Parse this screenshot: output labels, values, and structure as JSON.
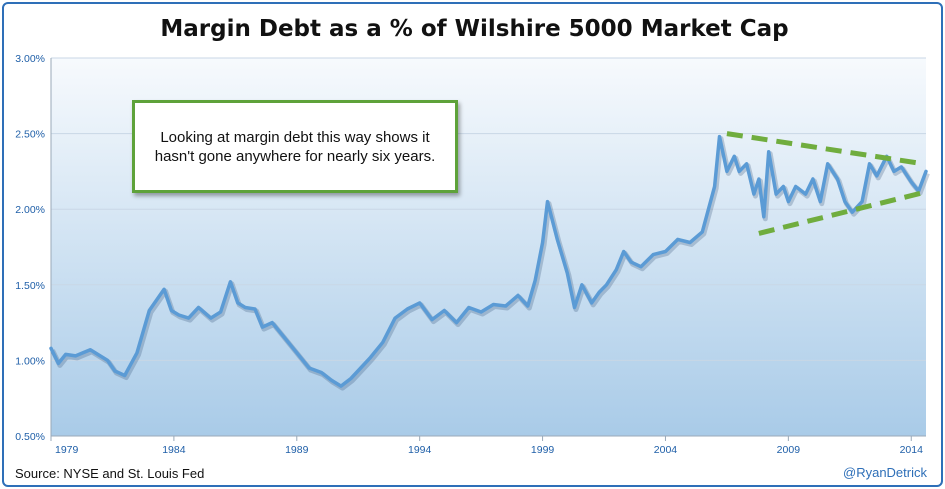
{
  "chart_data": {
    "type": "line",
    "title": "Margin Debt as a % of Wilshire 5000 Market Cap",
    "xlabel": "",
    "ylabel": "",
    "ylim": [
      0.5,
      3.0
    ],
    "xlim": [
      1979,
      2014.6
    ],
    "y_ticks": [
      "0.50%",
      "1.00%",
      "1.50%",
      "2.00%",
      "2.50%",
      "3.00%"
    ],
    "x_ticks": [
      "1979",
      "1984",
      "1989",
      "1994",
      "1999",
      "2004",
      "2009",
      "2014"
    ],
    "grid": true,
    "series": [
      {
        "name": "",
        "color": "#5b9bd5",
        "x": [
          1979.0,
          1979.3,
          1979.6,
          1980.0,
          1980.3,
          1980.6,
          1981.0,
          1981.3,
          1981.6,
          1982.0,
          1982.5,
          1983.0,
          1983.3,
          1983.6,
          1983.9,
          1984.2,
          1984.6,
          1985.0,
          1985.5,
          1985.9,
          1986.3,
          1986.6,
          1986.9,
          1987.3,
          1987.6,
          1988.0,
          1988.5,
          1989.0,
          1989.5,
          1990.0,
          1990.4,
          1990.8,
          1991.2,
          1991.6,
          1992.0,
          1992.5,
          1993.0,
          1993.5,
          1994.0,
          1994.5,
          1995.0,
          1995.5,
          1996.0,
          1996.5,
          1997.0,
          1997.5,
          1998.0,
          1998.4,
          1998.7,
          1999.0,
          1999.2,
          1999.6,
          2000.0,
          2000.3,
          2000.6,
          2001.0,
          2001.3,
          2001.6,
          2002.0,
          2002.3,
          2002.6,
          2003.0,
          2003.5,
          2004.0,
          2004.5,
          2005.0,
          2005.5,
          2006.0,
          2006.2,
          2006.5,
          2006.8,
          2007.0,
          2007.3,
          2007.6,
          2007.8,
          2008.0,
          2008.2,
          2008.5,
          2008.8,
          2009.0,
          2009.3,
          2009.7,
          2010.0,
          2010.3,
          2010.6,
          2011.0,
          2011.3,
          2011.6,
          2012.0,
          2012.3,
          2012.6,
          2013.0,
          2013.3,
          2013.6,
          2014.0,
          2014.3,
          2014.6
        ],
        "values": [
          1.08,
          0.98,
          1.04,
          1.03,
          1.05,
          1.07,
          1.03,
          1.0,
          0.93,
          0.9,
          1.05,
          1.33,
          1.4,
          1.47,
          1.33,
          1.3,
          1.28,
          1.35,
          1.28,
          1.32,
          1.52,
          1.38,
          1.35,
          1.34,
          1.22,
          1.25,
          1.15,
          1.05,
          0.95,
          0.92,
          0.87,
          0.83,
          0.88,
          0.95,
          1.02,
          1.12,
          1.28,
          1.34,
          1.38,
          1.27,
          1.33,
          1.25,
          1.35,
          1.32,
          1.37,
          1.36,
          1.43,
          1.36,
          1.53,
          1.78,
          2.05,
          1.8,
          1.58,
          1.35,
          1.5,
          1.38,
          1.45,
          1.5,
          1.6,
          1.72,
          1.65,
          1.62,
          1.7,
          1.72,
          1.8,
          1.78,
          1.85,
          2.15,
          2.48,
          2.25,
          2.35,
          2.25,
          2.3,
          2.1,
          2.2,
          1.95,
          2.38,
          2.1,
          2.15,
          2.05,
          2.15,
          2.1,
          2.2,
          2.05,
          2.3,
          2.2,
          2.05,
          1.98,
          2.05,
          2.3,
          2.22,
          2.35,
          2.25,
          2.28,
          2.18,
          2.12,
          2.25
        ]
      }
    ],
    "trend_lines": [
      {
        "x": [
          2006.5,
          2014.5
        ],
        "values": [
          2.5,
          2.3
        ]
      },
      {
        "x": [
          2007.8,
          2014.5
        ],
        "values": [
          1.84,
          2.11
        ]
      }
    ],
    "annotation": "Looking at margin debt this way shows it hasn't gone anywhere for nearly six years.",
    "source": "Source:  NYSE and St. Louis Fed",
    "credit": "@RyanDetrick"
  }
}
